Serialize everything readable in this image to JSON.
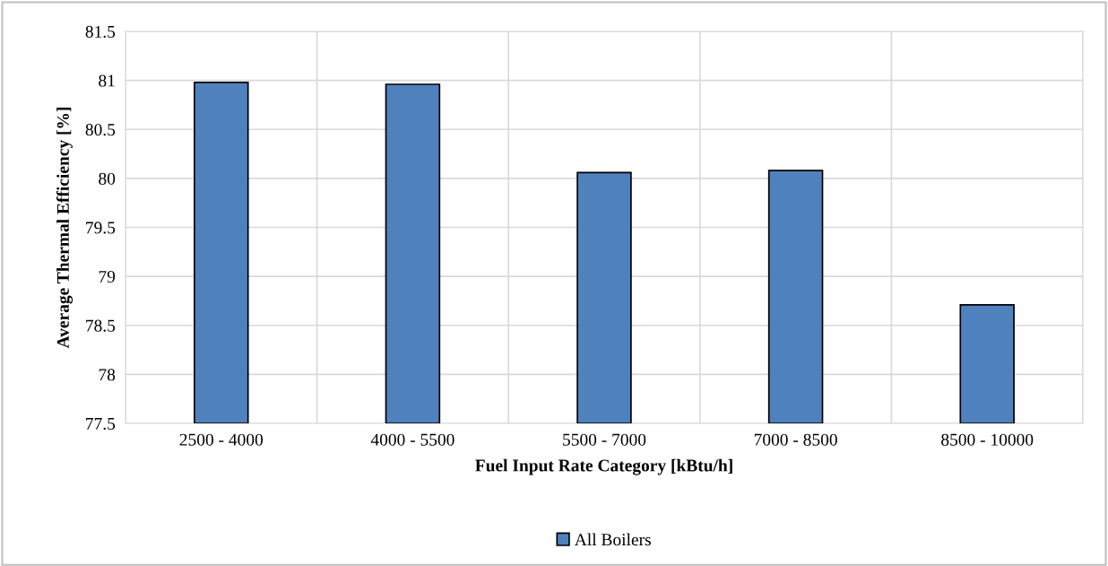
{
  "chart_data": {
    "type": "bar",
    "xlabel": "Fuel Input Rate Category [kBtu/h]",
    "ylabel": "Average Thermal Efficiency [%]",
    "categories": [
      "2500 - 4000",
      "4000 - 5500",
      "5500 - 7000",
      "7000 - 8500",
      "8500 - 10000"
    ],
    "series": [
      {
        "name": "All Boilers",
        "color": "#4f81bd",
        "values": [
          80.98,
          80.96,
          80.06,
          80.08,
          78.71
        ]
      }
    ],
    "ylim": [
      77.5,
      81.5
    ],
    "yticks": [
      77.5,
      78,
      78.5,
      79,
      79.5,
      80,
      80.5,
      81,
      81.5
    ],
    "grid": true,
    "legend": "bottom"
  }
}
